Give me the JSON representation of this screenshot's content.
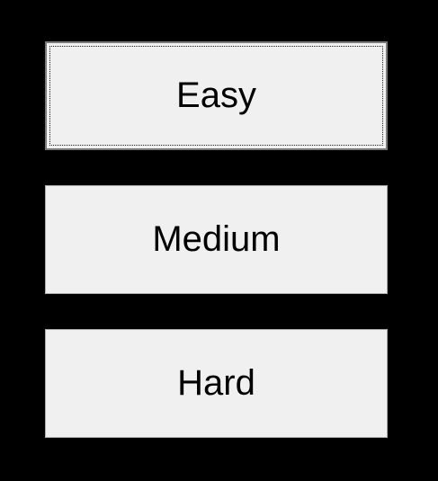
{
  "difficulty": {
    "buttons": [
      {
        "label": "Easy",
        "focused": true
      },
      {
        "label": "Medium",
        "focused": false
      },
      {
        "label": "Hard",
        "focused": false
      }
    ]
  },
  "colors": {
    "background": "#000000",
    "button_face": "#f0f0f0",
    "button_border": "#adadad",
    "text": "#000000"
  }
}
